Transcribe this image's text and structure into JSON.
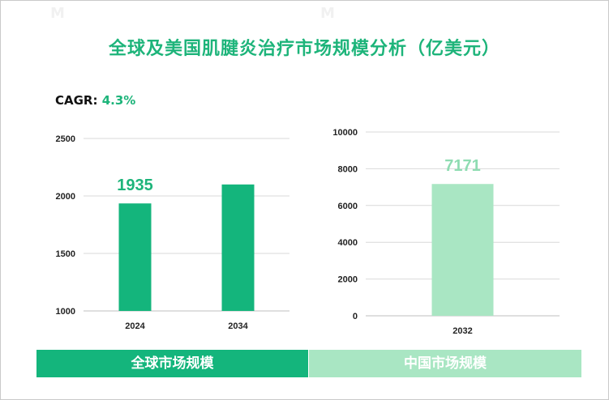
{
  "title": "全球及美国肌腱炎治疗市场规模分析（亿美元）",
  "cagr": {
    "label": "CAGR:",
    "value": "4.3%"
  },
  "colors": {
    "accent": "#1db47a",
    "global_bar": "#14b57c",
    "china_bar": "#a9e6c3"
  },
  "bands": {
    "global": "全球市场规模",
    "china": "中国市场规模"
  },
  "chart_data": [
    {
      "type": "bar",
      "title": "",
      "categories": [
        "2024",
        "2034"
      ],
      "values": [
        1935,
        2100
      ],
      "data_labels": [
        "1935",
        ""
      ],
      "ylim": [
        1000,
        2500
      ],
      "yticks": [
        1000,
        1500,
        2000,
        2500
      ],
      "grid": true,
      "color": "#14b57c"
    },
    {
      "type": "bar",
      "title": "",
      "categories": [
        "2032"
      ],
      "values": [
        7171
      ],
      "data_labels": [
        "7171"
      ],
      "ylim": [
        0,
        10000
      ],
      "yticks": [
        0,
        2000,
        4000,
        6000,
        8000,
        10000
      ],
      "grid": true,
      "color": "#a9e6c3"
    }
  ]
}
